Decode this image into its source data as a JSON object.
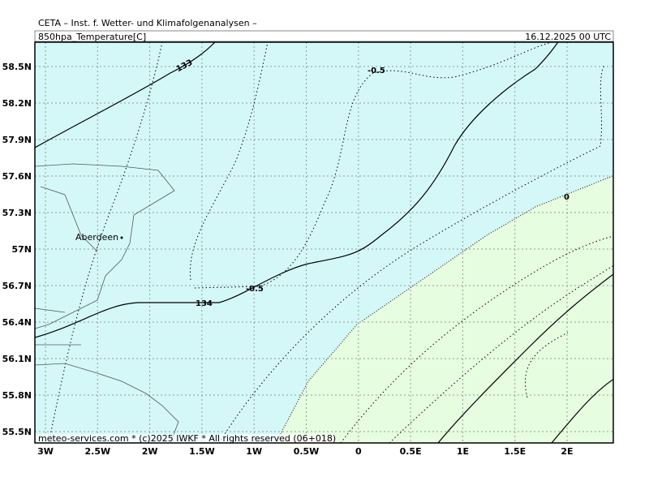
{
  "header": {
    "institute": "CETA – Inst. f. Wetter- und Klimafolgenanalysen –",
    "parameter": "850hpa_Temperature[C]",
    "valid_time": "16.12.2025 00 UTC"
  },
  "axes": {
    "latitudes": [
      "58.5N",
      "58.2N",
      "57.9N",
      "57.6N",
      "57.3N",
      "57N",
      "56.7N",
      "56.4N",
      "56.1N",
      "55.8N",
      "55.5N"
    ],
    "longitudes": [
      "3W",
      "2.5W",
      "2W",
      "1.5W",
      "1W",
      "0.5W",
      "0",
      "0.5E",
      "1E",
      "1.5E",
      "2E"
    ]
  },
  "places": [
    "Aberdeen"
  ],
  "contour_labels": [
    "133",
    "134",
    "-0.5",
    "-0.5",
    "0"
  ],
  "footer": "meteo-services.com * (c)2025 IWKF * All rights reserved (06+018)"
}
